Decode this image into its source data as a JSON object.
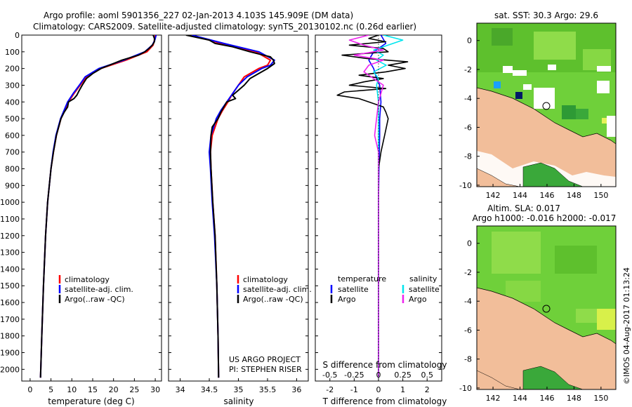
{
  "header": {
    "line1": "Argo profile: aoml 5901356_227 02-Jan-2013 4.103S 145.909E (DM data)",
    "line2": "Climatology: CARS2009. Satellite-adjusted climatology: synTS_20130102.nc (0.26d earlier)"
  },
  "colors": {
    "climatology": "#ff0000",
    "satellite": "#0000ff",
    "argo": "#000000",
    "salinity_satellite": "#00e5ee",
    "salinity_argo": "#ee22ee",
    "land": "#f2be9a",
    "ocean": "#6fd03a"
  },
  "depth_axis": {
    "ticks": [
      "0",
      "100",
      "200",
      "300",
      "400",
      "500",
      "600",
      "700",
      "800",
      "900",
      "1000",
      "1100",
      "1200",
      "1300",
      "1400",
      "1500",
      "1600",
      "1700",
      "1800",
      "1900",
      "2000"
    ]
  },
  "chart_data": [
    {
      "type": "line",
      "name": "temperature",
      "xlabel": "temperature (deg C)",
      "xlim": [
        -2,
        31.5
      ],
      "ylim": [
        2070,
        0
      ],
      "x_ticks": [
        "0",
        "5",
        "10",
        "15",
        "20",
        "25",
        "30"
      ],
      "series": [
        {
          "name": "climatology",
          "depth": [
            0,
            30,
            60,
            100,
            150,
            200,
            250,
            300,
            350,
            400,
            500,
            600,
            700,
            800,
            900,
            1000,
            1200,
            1500,
            1800,
            2050
          ],
          "values": [
            30,
            29.8,
            29.5,
            28,
            23,
            17,
            13.5,
            12,
            10.5,
            9.2,
            7.4,
            6.3,
            5.6,
            5,
            4.6,
            4.2,
            3.7,
            3.2,
            2.8,
            2.5
          ]
        },
        {
          "name": "satellite-adj. clim.",
          "depth": [
            0,
            30,
            60,
            100,
            150,
            200,
            250,
            300,
            350,
            400,
            500,
            600,
            700,
            800,
            900,
            1000,
            1200,
            1500,
            1800,
            2050
          ],
          "values": [
            30.2,
            29.9,
            29.3,
            27.5,
            22.5,
            16.5,
            13.2,
            11.8,
            10.3,
            9,
            7.3,
            6.2,
            5.5,
            5,
            4.6,
            4.2,
            3.7,
            3.2,
            2.8,
            2.5
          ]
        },
        {
          "name": "Argo(..raw -QC)",
          "depth": [
            0,
            20,
            40,
            60,
            80,
            100,
            120,
            150,
            180,
            200,
            230,
            260,
            300,
            330,
            360,
            380,
            400,
            430,
            460,
            500,
            600,
            700,
            800,
            1000,
            1200,
            1500,
            1800,
            2050
          ],
          "values": [
            29.5,
            29.8,
            29.8,
            29.3,
            28.5,
            27.5,
            26,
            22,
            19,
            17,
            15,
            13.5,
            12.5,
            11.8,
            11.2,
            10.5,
            9.2,
            9,
            8.2,
            7.4,
            6.3,
            5.6,
            5,
            4.2,
            3.7,
            3.2,
            2.8,
            2.5
          ]
        }
      ],
      "legend": [
        "climatology",
        "satellite-adj. clim.",
        "Argo(..raw -QC)"
      ]
    },
    {
      "type": "line",
      "name": "salinity",
      "xlabel": "salinity",
      "xlim": [
        33.8,
        36.2
      ],
      "ylim": [
        2070,
        0
      ],
      "x_ticks": [
        "34",
        "34.5",
        "35",
        "35.5",
        "36"
      ],
      "series": [
        {
          "name": "climatology",
          "depth": [
            0,
            50,
            100,
            150,
            180,
            200,
            250,
            300,
            350,
            400,
            450,
            500,
            600,
            700,
            800,
            1000,
            1200,
            1500,
            1800,
            2050
          ],
          "values": [
            34.2,
            34.7,
            35.3,
            35.55,
            35.5,
            35.35,
            35.1,
            35,
            34.9,
            34.82,
            34.73,
            34.65,
            34.55,
            34.52,
            34.53,
            34.56,
            34.6,
            34.63,
            34.65,
            34.66
          ]
        },
        {
          "name": "satellite-adj. clim.",
          "depth": [
            0,
            50,
            100,
            150,
            180,
            200,
            250,
            300,
            350,
            400,
            450,
            500,
            600,
            700,
            800,
            1000,
            1200,
            1500,
            1800,
            2050
          ],
          "values": [
            34.2,
            34.75,
            35.35,
            35.62,
            35.55,
            35.4,
            35.15,
            35,
            34.9,
            34.8,
            34.7,
            34.62,
            34.53,
            34.5,
            34.52,
            34.55,
            34.59,
            34.63,
            34.65,
            34.66
          ]
        },
        {
          "name": "Argo(..raw -QC)",
          "depth": [
            0,
            30,
            50,
            70,
            100,
            130,
            150,
            170,
            200,
            230,
            260,
            300,
            330,
            360,
            380,
            400,
            430,
            460,
            500,
            550,
            600,
            700,
            800,
            1000,
            1200,
            1500,
            1800,
            2050
          ],
          "values": [
            34.1,
            34.5,
            34.6,
            34.9,
            35.2,
            35.55,
            35.6,
            35.62,
            35.5,
            35.35,
            35.2,
            35.1,
            35,
            34.9,
            34.95,
            34.8,
            34.75,
            34.7,
            34.65,
            34.55,
            34.53,
            34.52,
            34.53,
            34.56,
            34.6,
            34.63,
            34.65,
            34.66
          ]
        }
      ],
      "legend": [
        "climatology",
        "satellite-adj. clim.",
        "Argo(..raw -QC)"
      ],
      "annotation": [
        "US ARGO PROJECT",
        "PI: STEPHEN RISER"
      ]
    },
    {
      "type": "line",
      "name": "differences",
      "xlabel": "T difference from climatology",
      "top_axis_label": "S difference from climatology",
      "xlim": [
        -2.6,
        2.6
      ],
      "ylim": [
        2070,
        0
      ],
      "x_ticks": [
        "-2",
        "-1",
        "0",
        "1",
        "2"
      ],
      "s_ticks": [
        "-0.5",
        "-0.25",
        "0",
        "0.25",
        "0.5"
      ],
      "series": [
        {
          "name": "temperature satellite",
          "depth": [
            0,
            50,
            100,
            150,
            200,
            250,
            300,
            400,
            500,
            600,
            800,
            1000,
            1500,
            2050
          ],
          "values": [
            0.1,
            0.3,
            -0.2,
            -0.4,
            -0.2,
            -0.1,
            0.05,
            0.1,
            0.05,
            0.05,
            0.02,
            0,
            0,
            0
          ]
        },
        {
          "name": "temperature Argo",
          "depth": [
            0,
            20,
            40,
            60,
            80,
            100,
            120,
            140,
            160,
            180,
            200,
            220,
            240,
            260,
            280,
            300,
            320,
            340,
            360,
            380,
            400,
            430,
            460,
            500,
            600,
            700,
            800,
            1000,
            1500,
            2050
          ],
          "values": [
            0,
            -0.4,
            0.3,
            -1.2,
            0.2,
            0.4,
            -1.5,
            -0.5,
            1.2,
            0.4,
            1.1,
            0.3,
            -0.8,
            0.2,
            -0.6,
            -1.2,
            0.3,
            -1.4,
            -1.7,
            -0.8,
            -0.4,
            0.2,
            0.3,
            0.4,
            0.25,
            0.1,
            0,
            0,
            0,
            0
          ]
        },
        {
          "name": "salinity satellite",
          "depth": [
            0,
            30,
            60,
            90,
            120,
            150,
            180,
            220,
            260,
            300,
            400,
            500,
            700,
            1000,
            1500,
            2050
          ],
          "values": [
            0.05,
            0.25,
            0.1,
            -0.05,
            0.05,
            -0.02,
            0.08,
            -0.05,
            0.0,
            -0.02,
            0,
            0,
            0,
            0,
            0,
            0
          ]
        },
        {
          "name": "salinity Argo",
          "depth": [
            0,
            30,
            60,
            90,
            120,
            150,
            180,
            220,
            260,
            300,
            400,
            500,
            600,
            700,
            800,
            1000,
            1500,
            2050
          ],
          "values": [
            -0.1,
            -0.3,
            -0.15,
            0.05,
            -0.25,
            0.05,
            -0.1,
            -0.15,
            -0.05,
            0.05,
            0,
            -0.02,
            -0.04,
            0,
            0,
            0,
            0,
            0
          ]
        }
      ],
      "legend_titles": [
        "temperature",
        "salinity"
      ],
      "legend": [
        "satellite",
        "Argo",
        "satellite",
        "Argo"
      ]
    }
  ],
  "maps": {
    "top": {
      "title": "sat. SST: 30.3  Argo: 29.6",
      "y_ticks": [
        "0",
        "-2",
        "-4",
        "-6",
        "-8",
        "-10"
      ],
      "x_ticks": [
        "142",
        "144",
        "146",
        "148",
        "150"
      ]
    },
    "bottom": {
      "title_line1": "Altim. SLA: 0.017",
      "title_line2": "Argo h1000: -0.016  h2000: -0.017",
      "y_ticks": [
        "0",
        "-2",
        "-4",
        "-6",
        "-8",
        "-10"
      ],
      "x_ticks": [
        "142",
        "144",
        "146",
        "148",
        "150"
      ]
    }
  },
  "footer": {
    "credit": "©IMOS 04-Aug-2017 01:13:24"
  }
}
